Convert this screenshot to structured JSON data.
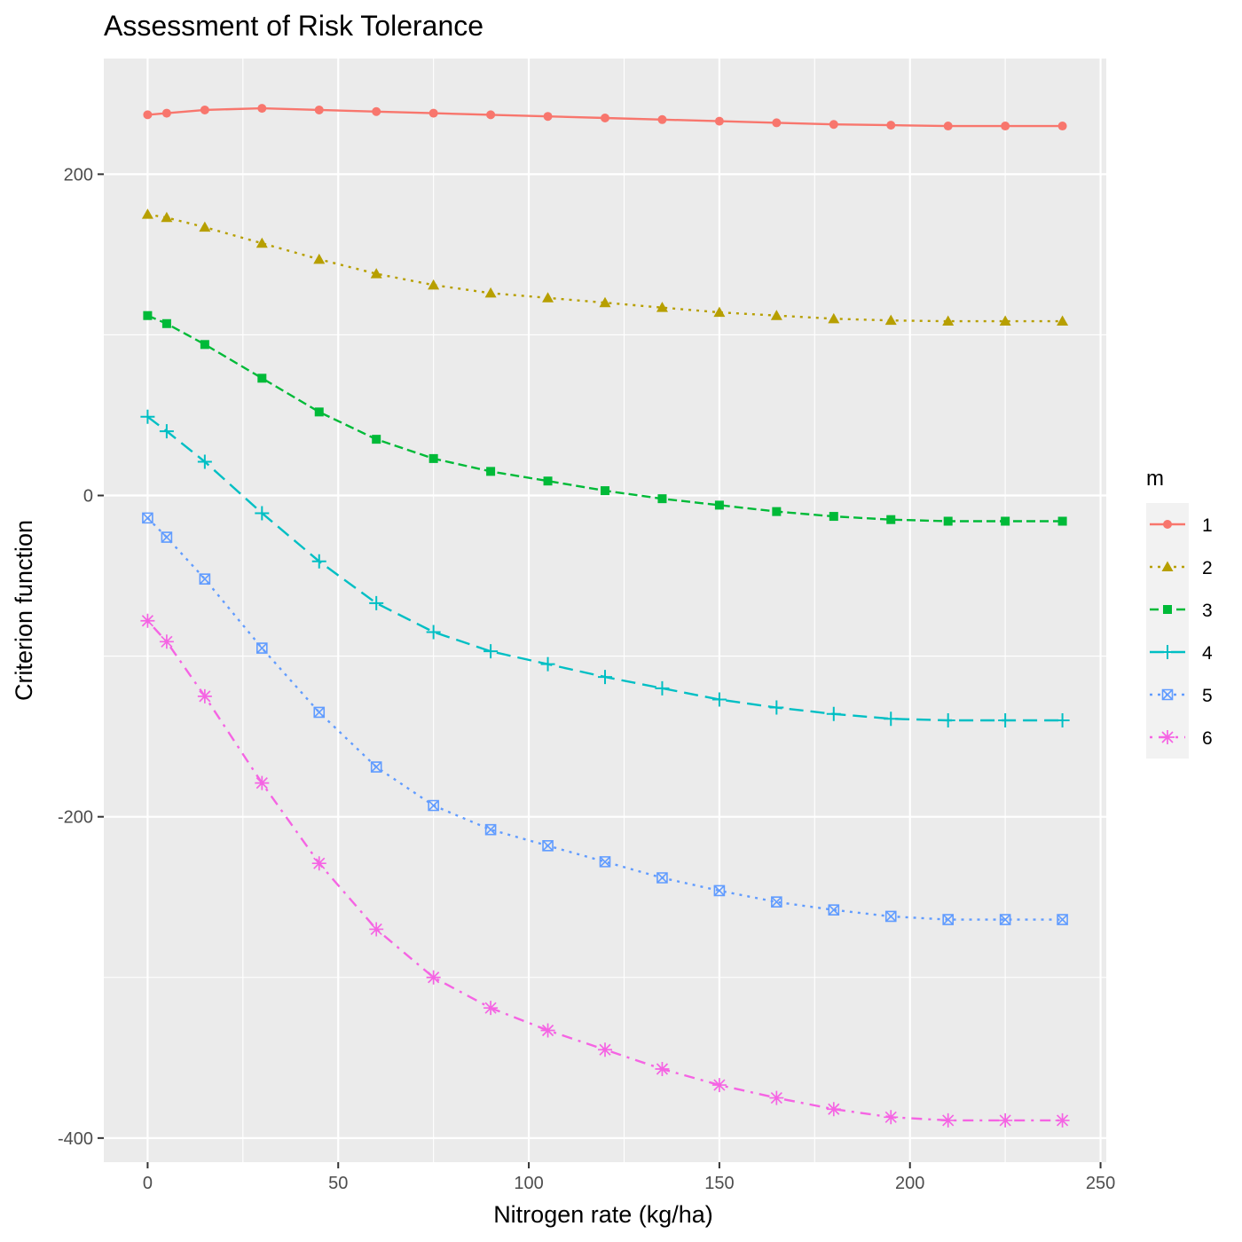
{
  "chart_data": {
    "type": "line",
    "title": "Assessment of Risk Tolerance",
    "xlabel": "Nitrogen rate (kg/ha)",
    "ylabel": "Criterion function",
    "xlim": [
      -11.5,
      251.5
    ],
    "ylim": [
      -415,
      272
    ],
    "x_ticks": [
      0,
      50,
      100,
      150,
      200,
      250
    ],
    "x_tick_labels": [
      "0",
      "50",
      "100",
      "150",
      "200",
      "250"
    ],
    "y_ticks": [
      -400,
      -200,
      0,
      200
    ],
    "y_tick_labels": [
      "-400",
      "-200",
      "0",
      "200"
    ],
    "grid": true,
    "legend_title": "m",
    "legend_position": "right",
    "x": [
      0,
      5,
      15,
      30,
      45,
      60,
      75,
      90,
      105,
      120,
      135,
      150,
      165,
      180,
      195,
      210,
      225,
      240
    ],
    "series": [
      {
        "name": "1",
        "color": "#F8766D",
        "linestyle": "solid",
        "marker": "circle",
        "values": [
          237,
          238,
          240,
          241,
          240,
          239,
          238,
          237,
          236,
          235,
          234,
          233,
          232,
          231,
          230.5,
          230,
          230,
          230
        ]
      },
      {
        "name": "2",
        "color": "#B79F00",
        "linestyle": "dotted",
        "marker": "triangle",
        "values": [
          175,
          173,
          167,
          157,
          147,
          138,
          131,
          126,
          123,
          120,
          117,
          114,
          112,
          110,
          109,
          108.5,
          108.5,
          108.5
        ]
      },
      {
        "name": "3",
        "color": "#00BA38",
        "linestyle": "dashed",
        "marker": "square",
        "values": [
          112,
          107,
          94,
          73,
          52,
          35,
          23,
          15,
          9,
          3,
          -2,
          -6,
          -10,
          -13,
          -15,
          -16,
          -16,
          -16
        ]
      },
      {
        "name": "4",
        "color": "#00BFC4",
        "linestyle": "longdash",
        "marker": "plus",
        "values": [
          49,
          40,
          21,
          -11,
          -41,
          -67,
          -85,
          -97,
          -105,
          -113,
          -120,
          -127,
          -132,
          -136,
          -139,
          -140,
          -140,
          -140
        ]
      },
      {
        "name": "5",
        "color": "#619CFF",
        "linestyle": "dotted",
        "marker": "square-cross",
        "values": [
          -14,
          -26,
          -52,
          -95,
          -135,
          -169,
          -193,
          -208,
          -218,
          -228,
          -238,
          -246,
          -253,
          -258,
          -262,
          -264,
          -264,
          -264
        ]
      },
      {
        "name": "6",
        "color": "#F564E3",
        "linestyle": "dotdash",
        "marker": "asterisk",
        "values": [
          -78,
          -91,
          -125,
          -179,
          -229,
          -270,
          -300,
          -319,
          -333,
          -345,
          -357,
          -367,
          -375,
          -382,
          -387,
          -389,
          -389,
          -389
        ]
      }
    ]
  }
}
